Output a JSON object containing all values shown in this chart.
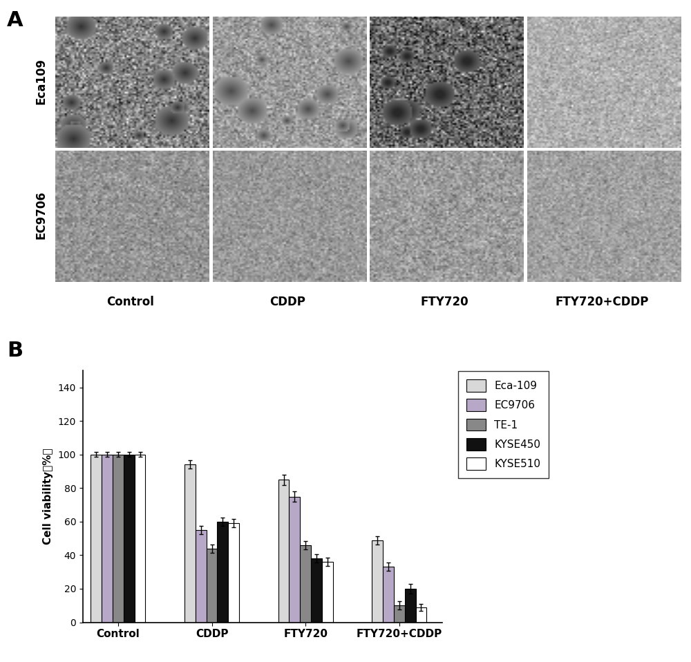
{
  "panel_A_label": "A",
  "panel_B_label": "B",
  "row_labels": [
    "Eca109",
    "EC9706"
  ],
  "col_labels": [
    "Control",
    "CDDP",
    "FTY720",
    "FTY720+CDDP"
  ],
  "bar_groups": [
    "Control",
    "CDDP",
    "FTY720",
    "FTY720+CDDP"
  ],
  "series_labels": [
    "Eca-109",
    "EC9706",
    "TE-1",
    "KYSE450",
    "KYSE510"
  ],
  "bar_colors": [
    "#d8d8d8",
    "#b8a8c8",
    "#888888",
    "#111111",
    "#ffffff"
  ],
  "bar_edge_colors": [
    "#000000",
    "#000000",
    "#000000",
    "#000000",
    "#000000"
  ],
  "bar_data": {
    "Control": [
      100,
      100,
      100,
      100,
      100
    ],
    "CDDP": [
      94,
      55,
      44,
      60,
      59
    ],
    "FTY720": [
      85,
      75,
      46,
      38,
      36
    ],
    "FTY720+CDDP": [
      49,
      33,
      10,
      20,
      9
    ]
  },
  "bar_errors": {
    "Control": [
      1.5,
      1.5,
      1.5,
      1.5,
      1.5
    ],
    "CDDP": [
      2.5,
      2.5,
      2.5,
      2.5,
      2.5
    ],
    "FTY720": [
      3.0,
      3.0,
      2.5,
      2.5,
      2.5
    ],
    "FTY720+CDDP": [
      2.5,
      2.5,
      2.5,
      3.0,
      2.0
    ]
  },
  "ylabel": "Cell viability（%）",
  "ylim": [
    0,
    150
  ],
  "yticks": [
    0,
    20,
    40,
    60,
    80,
    100,
    120,
    140
  ],
  "bar_width": 0.14,
  "group_positions": [
    1.0,
    2.2,
    3.4,
    4.6
  ],
  "cell_base_colors": [
    [
      "#aaaaaa",
      "#b0b0b0",
      "#7a7a7a",
      "#c0c0c0"
    ],
    [
      "#a0a0a0",
      "#a5a5a5",
      "#a8a8a8",
      "#b5b5b5"
    ]
  ]
}
